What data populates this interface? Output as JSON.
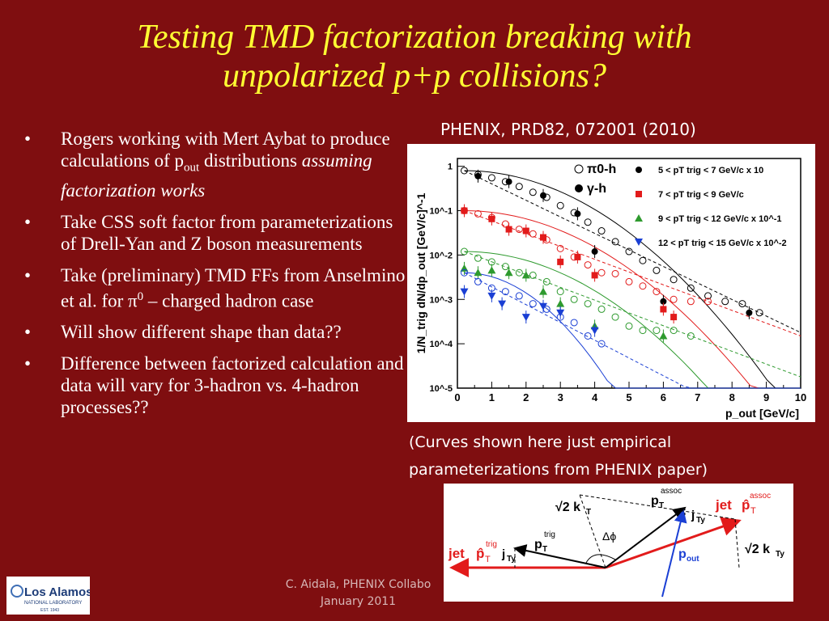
{
  "title": {
    "line1": "Testing TMD factorization breaking with",
    "line2": "unpolarized p+p collisions?"
  },
  "bullets": [
    {
      "text": "Rogers working with Mert Aybat to produce calculations of p",
      "sub": "out",
      "line2": " distributions ",
      "italic": "assuming factorization works"
    },
    {
      "text": "Take CSS soft factor from parameterizations of Drell-Yan and Z boson measurements"
    },
    {
      "text": "Take (preliminary) TMD FFs from Anselmino et al. for π",
      "sup": "0",
      "tail": " – charged hadron case"
    },
    {
      "text": "Will show different shape than data??"
    },
    {
      "text": "Difference between factorized calculation and data will vary for 3-hadron vs. 4-hadron processes??"
    }
  ],
  "bullet_char": "•",
  "reference": "PHENIX, PRD82, 072001 (2010)",
  "curves_note": "(Curves shown here just empirical parameterizations from PHENIX paper)",
  "footer": {
    "line1": "C. Aidala, PHENIX Collabo",
    "line2": "January 2011"
  },
  "logo": {
    "text": "Los Alamos",
    "sub": "NATIONAL LABORATORY",
    "est": "EST. 1943"
  },
  "chart_data": {
    "type": "scatter",
    "title": "",
    "xlabel": "p_out [GeV/c]",
    "ylabel": "1/N_trig dN/dp_out [GeV/c]^-1",
    "xlim": [
      0,
      10
    ],
    "ylim": [
      1e-05,
      1.5
    ],
    "y_scale": "log",
    "x_ticks": [
      "0",
      "1",
      "2",
      "3",
      "4",
      "5",
      "6",
      "7",
      "8",
      "9",
      "10"
    ],
    "y_ticks": [
      "1",
      "10^-1",
      "10^-2",
      "10^-3",
      "10^-4",
      "10^-5"
    ],
    "legend_placement": "top-right",
    "legend": {
      "markers": [
        {
          "label": "π0-h",
          "symbol": "open-circle"
        },
        {
          "label": "γ-h",
          "symbol": "filled-circle"
        }
      ],
      "bins": [
        {
          "label": "5 < pT trig < 7 GeV/c x 10",
          "color": "#000000",
          "symbol": "filled-circle"
        },
        {
          "label": "7 < pT trig < 9 GeV/c",
          "color": "#e21b1b",
          "symbol": "filled-square"
        },
        {
          "label": "9 < pT trig < 12 GeV/c x 10^-1",
          "color": "#2e9a2e",
          "symbol": "filled-triangle"
        },
        {
          "label": "12 < pT trig < 15 GeV/c x 10^-2",
          "color": "#1a3fd4",
          "symbol": "filled-triangle-down"
        }
      ]
    },
    "series": [
      {
        "bin": 0,
        "kind": "pi0",
        "color": "#000000",
        "x": [
          0.2,
          0.6,
          1.0,
          1.4,
          1.8,
          2.2,
          2.6,
          3.0,
          3.4,
          3.8,
          4.2,
          4.6,
          5.0,
          5.4,
          5.8,
          6.3,
          6.8,
          7.3,
          7.8,
          8.3,
          8.8
        ],
        "y": [
          0.8,
          0.65,
          0.55,
          0.45,
          0.35,
          0.26,
          0.2,
          0.13,
          0.09,
          0.055,
          0.035,
          0.02,
          0.012,
          0.0075,
          0.0045,
          0.0028,
          0.0018,
          0.0012,
          0.0009,
          0.0008,
          0.0005
        ]
      },
      {
        "bin": 0,
        "kind": "gamma",
        "color": "#000000",
        "x": [
          0.6,
          1.5,
          2.5,
          3.5,
          4.0,
          6.0,
          8.5
        ],
        "y": [
          0.6,
          0.45,
          0.22,
          0.085,
          0.012,
          0.0009,
          0.0005
        ]
      },
      {
        "bin": 1,
        "kind": "pi0",
        "color": "#e21b1b",
        "x": [
          0.2,
          0.6,
          1.0,
          1.4,
          1.8,
          2.2,
          2.6,
          3.0,
          3.4,
          3.8,
          4.2,
          4.6,
          5.0,
          5.4,
          5.8,
          6.3,
          6.8,
          7.3
        ],
        "y": [
          0.1,
          0.085,
          0.07,
          0.05,
          0.038,
          0.03,
          0.022,
          0.014,
          0.009,
          0.006,
          0.004,
          0.0038,
          0.0025,
          0.002,
          0.0015,
          0.001,
          0.0009,
          0.0009
        ]
      },
      {
        "bin": 1,
        "kind": "gamma",
        "color": "#e21b1b",
        "x": [
          0.2,
          1.0,
          1.5,
          2.0,
          2.5,
          3.0,
          3.5,
          4.0,
          6.0,
          6.3
        ],
        "y": [
          0.1,
          0.065,
          0.038,
          0.035,
          0.025,
          0.007,
          0.009,
          0.0035,
          0.0006,
          0.0004
        ]
      },
      {
        "bin": 2,
        "kind": "pi0",
        "color": "#2e9a2e",
        "x": [
          0.2,
          0.6,
          1.0,
          1.4,
          1.8,
          2.2,
          2.6,
          3.0,
          3.4,
          3.8,
          4.2,
          4.6,
          5.0,
          5.4,
          5.8,
          6.3,
          6.8
        ],
        "y": [
          0.012,
          0.0085,
          0.007,
          0.0055,
          0.004,
          0.0035,
          0.0025,
          0.0015,
          0.001,
          0.0008,
          0.0006,
          0.0004,
          0.00025,
          0.0002,
          0.0002,
          0.0002,
          0.00015
        ]
      },
      {
        "bin": 2,
        "kind": "gamma",
        "color": "#2e9a2e",
        "x": [
          0.2,
          0.6,
          1.0,
          1.5,
          2.0,
          2.5,
          3.0,
          4.0,
          6.0
        ],
        "y": [
          0.005,
          0.004,
          0.0045,
          0.004,
          0.0035,
          0.0015,
          0.0008,
          0.00025,
          0.00015
        ]
      },
      {
        "bin": 3,
        "kind": "pi0",
        "color": "#1a3fd4",
        "x": [
          0.2,
          0.6,
          1.0,
          1.4,
          1.8,
          2.2,
          2.6,
          3.0,
          3.4,
          3.8,
          4.2
        ],
        "y": [
          0.004,
          0.0025,
          0.0018,
          0.0015,
          0.0012,
          0.0008,
          0.0006,
          0.0004,
          0.0003,
          0.00015,
          0.0001
        ]
      },
      {
        "bin": 3,
        "kind": "gamma",
        "color": "#1a3fd4",
        "x": [
          0.2,
          1.0,
          1.3,
          2.0,
          2.5,
          3.0,
          4.0
        ],
        "y": [
          0.0015,
          0.0012,
          0.0008,
          0.0004,
          0.0007,
          0.0005,
          0.0002
        ]
      }
    ]
  },
  "diagram": {
    "labels": {
      "jet_left": "jet",
      "pt_trig_hat": "p̂",
      "pt_trig_sup": "trig",
      "j_ty_left": "j",
      "pt_trig": "p",
      "pt_assoc": "p",
      "assoc_sup": "assoc",
      "j_ty": "j",
      "jet_right": "jet",
      "pt_assoc_hat": "p̂",
      "kt": "√2 k",
      "kty": "√2 k",
      "dphi": "Δϕ",
      "pout": "p",
      "pout_sub": "out",
      "T": "T",
      "Ty": "Ty"
    }
  }
}
